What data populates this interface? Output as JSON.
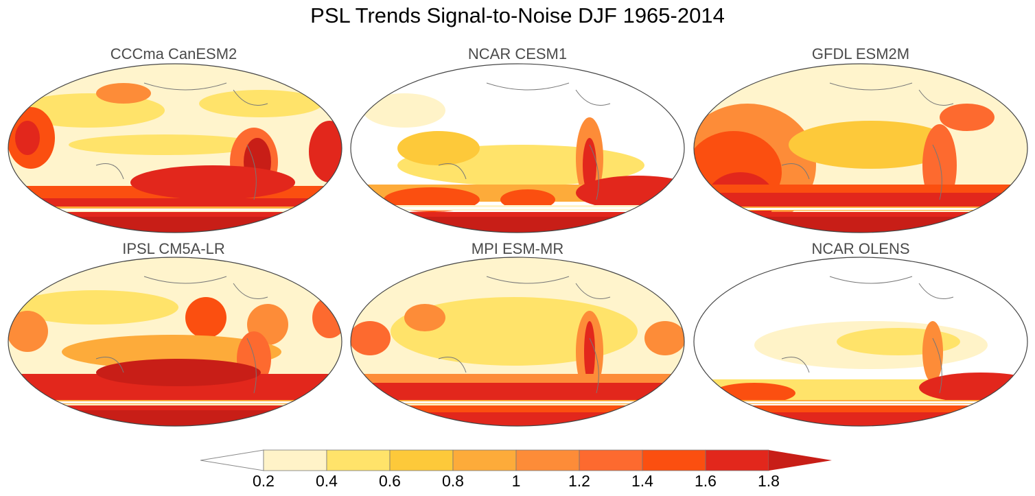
{
  "title": "PSL Trends Signal-to-Noise DJF 1965-2014",
  "panels": [
    {
      "title": "CCCma CanESM2"
    },
    {
      "title": "NCAR CESM1"
    },
    {
      "title": "GFDL ESM2M"
    },
    {
      "title": "IPSL CM5A-LR"
    },
    {
      "title": "MPI ESM-MR"
    },
    {
      "title": "NCAR OLENS"
    }
  ],
  "colorbar": {
    "levels": [
      "0.2",
      "0.4",
      "0.6",
      "0.8",
      "1",
      "1.2",
      "1.4",
      "1.6",
      "1.8"
    ],
    "colors": [
      "#ffffff",
      "#fff3c8",
      "#ffe36a",
      "#fdc93a",
      "#fdab3a",
      "#fd8c38",
      "#fd6a2f",
      "#fb4f10",
      "#e2271c",
      "#c81e17"
    ]
  }
}
